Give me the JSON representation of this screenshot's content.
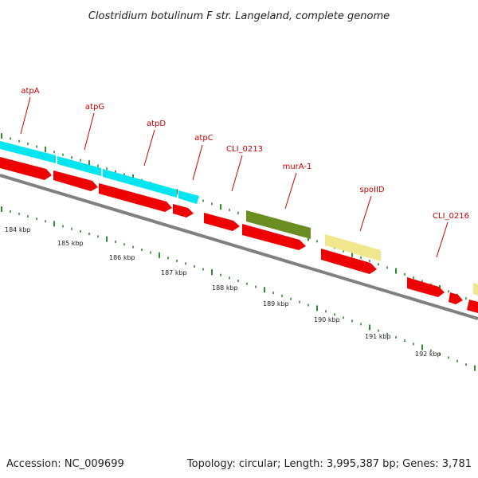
{
  "title": "Clostridium botulinum F str. Langeland, complete genome",
  "footer": {
    "accession": "Accession: NC_009699",
    "topology": "Topology: circular; Length: 3,995,387 bp; Genes: 3,781"
  },
  "colors": {
    "cyan_gene": "#00e5ef",
    "red_gene": "#ee0000",
    "olive_gene": "#6b8e23",
    "khaki_gene": "#f0e68c",
    "tick": "#2e8b2e",
    "label": "#cc0000",
    "backbone": "#808080"
  },
  "gene_labels": [
    "atpA",
    "atpG",
    "atpD",
    "atpC",
    "CLI_0213",
    "murA-1",
    "spoIID",
    "CLI_0216"
  ],
  "kbp_labels": [
    "184 kbp",
    "185 kbp",
    "186 kbp",
    "187 kbp",
    "188 kbp",
    "189 kbp",
    "190 kbp",
    "191 kbp",
    "192 kbp"
  ]
}
